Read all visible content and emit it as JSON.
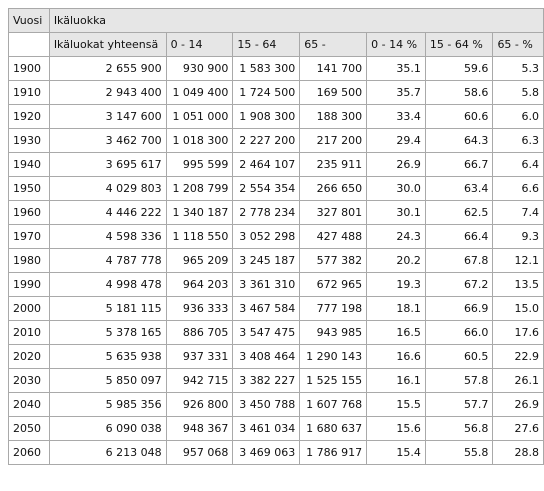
{
  "header": {
    "vuosi": "Vuosi",
    "group": "Ikäluokka",
    "columns": [
      "Ikäluokat yhteensä",
      "0 - 14",
      "15 - 64",
      "65 -",
      "0 - 14 %",
      "15 - 64 %",
      "65 - %"
    ]
  },
  "rows": [
    [
      "1900",
      "2 655 900",
      "930 900",
      "1 583 300",
      "141 700",
      "35.1",
      "59.6",
      "5.3"
    ],
    [
      "1910",
      "2 943 400",
      "1 049 400",
      "1 724 500",
      "169 500",
      "35.7",
      "58.6",
      "5.8"
    ],
    [
      "1920",
      "3 147 600",
      "1 051 000",
      "1 908 300",
      "188 300",
      "33.4",
      "60.6",
      "6.0"
    ],
    [
      "1930",
      "3 462 700",
      "1 018 300",
      "2 227 200",
      "217 200",
      "29.4",
      "64.3",
      "6.3"
    ],
    [
      "1940",
      "3 695 617",
      "995 599",
      "2 464 107",
      "235 911",
      "26.9",
      "66.7",
      "6.4"
    ],
    [
      "1950",
      "4 029 803",
      "1 208 799",
      "2 554 354",
      "266 650",
      "30.0",
      "63.4",
      "6.6"
    ],
    [
      "1960",
      "4 446 222",
      "1 340 187",
      "2 778 234",
      "327 801",
      "30.1",
      "62.5",
      "7.4"
    ],
    [
      "1970",
      "4 598 336",
      "1 118 550",
      "3 052 298",
      "427 488",
      "24.3",
      "66.4",
      "9.3"
    ],
    [
      "1980",
      "4 787 778",
      "965 209",
      "3 245 187",
      "577 382",
      "20.2",
      "67.8",
      "12.1"
    ],
    [
      "1990",
      "4 998 478",
      "964 203",
      "3 361 310",
      "672 965",
      "19.3",
      "67.2",
      "13.5"
    ],
    [
      "2000",
      "5 181 115",
      "936 333",
      "3 467 584",
      "777 198",
      "18.1",
      "66.9",
      "15.0"
    ],
    [
      "2010",
      "5 378 165",
      "886 705",
      "3 547 475",
      "943 985",
      "16.5",
      "66.0",
      "17.6"
    ],
    [
      "2020",
      "5 635 938",
      "937 331",
      "3 408 464",
      "1 290 143",
      "16.6",
      "60.5",
      "22.9"
    ],
    [
      "2030",
      "5 850 097",
      "942 715",
      "3 382 227",
      "1 525 155",
      "16.1",
      "57.8",
      "26.1"
    ],
    [
      "2040",
      "5 985 356",
      "926 800",
      "3 450 788",
      "1 607 768",
      "15.5",
      "57.7",
      "26.9"
    ],
    [
      "2050",
      "6 090 038",
      "948 367",
      "3 461 034",
      "1 680 637",
      "15.6",
      "56.8",
      "27.6"
    ],
    [
      "2060",
      "6 213 048",
      "957 068",
      "3 469 063",
      "1 786 917",
      "15.4",
      "55.8",
      "28.8"
    ]
  ]
}
